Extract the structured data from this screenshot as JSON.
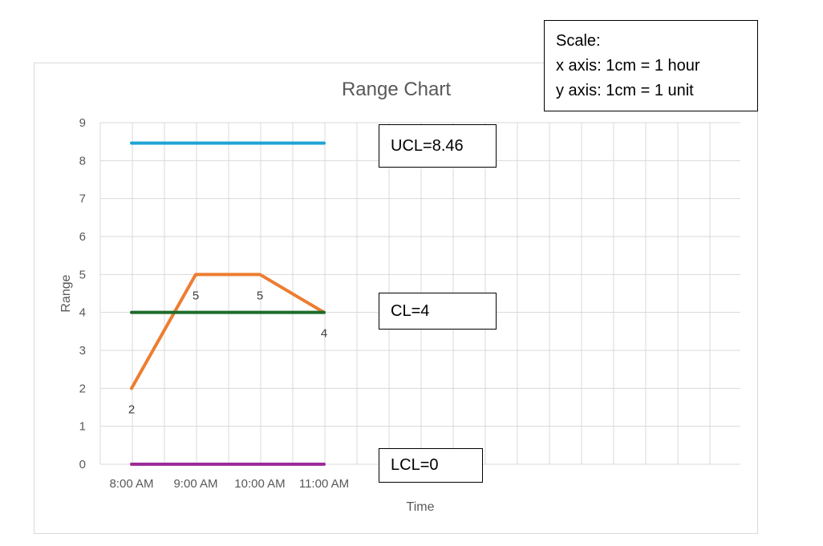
{
  "chart_data": {
    "type": "line",
    "title": "Range Chart",
    "xlabel": "Time",
    "ylabel": "Range",
    "categories": [
      "8:00 AM",
      "9:00 AM",
      "10:00 AM",
      "11:00 AM"
    ],
    "ylim": [
      0,
      9
    ],
    "yticks": [
      0,
      1,
      2,
      3,
      4,
      5,
      6,
      7,
      8,
      9
    ],
    "grid": true,
    "series": [
      {
        "values": [
          2,
          5,
          5,
          4
        ],
        "color": "#ED7D31",
        "data_labels": [
          "2",
          "5",
          "5",
          "4"
        ]
      },
      {
        "values": [
          8.46,
          8.46,
          8.46,
          8.46
        ],
        "color": "#1FA4D4"
      },
      {
        "values": [
          4,
          4,
          4,
          4
        ],
        "color": "#1E6B2A"
      },
      {
        "values": [
          0,
          0,
          0,
          0
        ],
        "color": "#9B2D9B"
      }
    ],
    "annotations": {
      "ucl": "UCL=8.46",
      "cl": "CL=4",
      "lcl": "LCL=0"
    }
  },
  "scale_note": {
    "heading": "Scale:",
    "x_axis": "x axis: 1cm = 1 hour",
    "y_axis": "y axis: 1cm = 1 unit"
  }
}
